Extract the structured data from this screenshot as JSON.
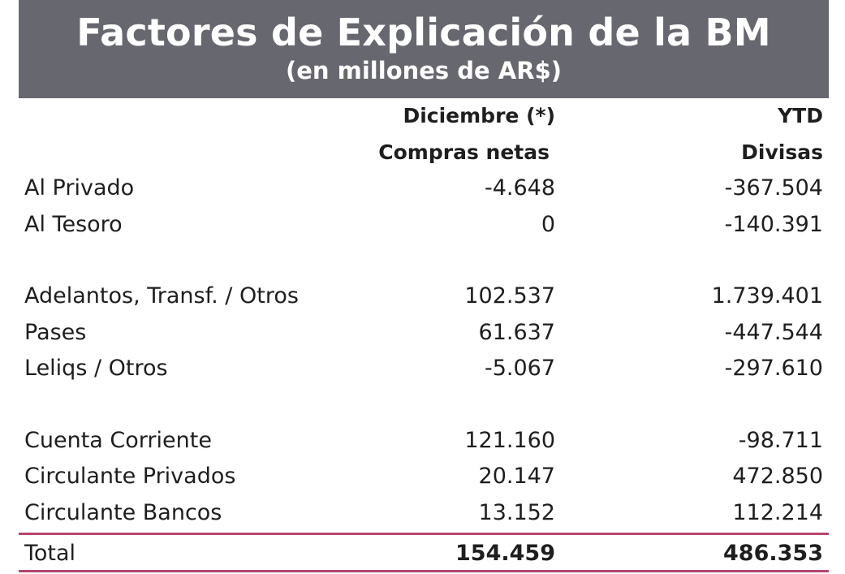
{
  "header": {
    "title": "Factores de Explicación de la BM",
    "subtitle": "(en millones de AR$)",
    "background_color": "#67676f"
  },
  "columns": {
    "col1_line1": "Diciembre (*)",
    "col1_line2": "Compras netas",
    "col2_line1": "YTD",
    "col2_line2": "Divisas"
  },
  "rows": [
    {
      "label": "Al Privado",
      "col1": "-4.648",
      "col2": "-367.504"
    },
    {
      "label": "Al Tesoro",
      "col1": "0",
      "col2": "-140.391"
    },
    {
      "label": "Adelantos, Transf. / Otros",
      "col1": "102.537",
      "col2": "1.739.401"
    },
    {
      "label": "Pases",
      "col1": "61.637",
      "col2": "-447.544"
    },
    {
      "label": "Leliqs / Otros",
      "col1": "-5.067",
      "col2": "-297.610"
    },
    {
      "label": "Cuenta Corriente",
      "col1": "121.160",
      "col2": "-98.711"
    },
    {
      "label": "Circulante Privados",
      "col1": "20.147",
      "col2": "472.850"
    },
    {
      "label": "Circulante Bancos",
      "col1": "13.152",
      "col2": "112.214"
    }
  ],
  "total": {
    "label": "Total",
    "col1": "154.459",
    "col2": "486.353"
  },
  "accent_color": "#b7456f"
}
